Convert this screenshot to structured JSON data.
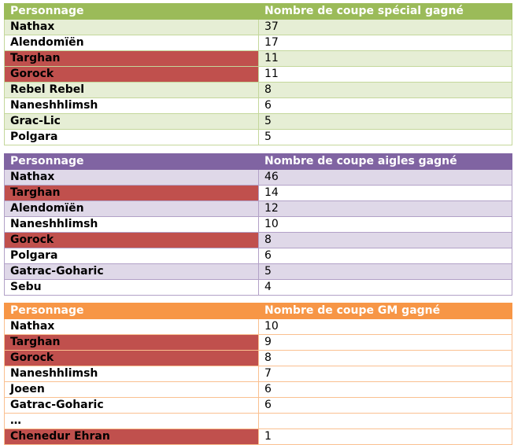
{
  "tables": [
    {
      "header": [
        "Personnage",
        "Nombre de coupe spécial gagné"
      ],
      "rows": [
        {
          "name": "Nathax",
          "value": "37"
        },
        {
          "name": "Alendomïën",
          "value": "17"
        },
        {
          "name": "Targhan",
          "value": "11"
        },
        {
          "name": "Gorock",
          "value": "11"
        },
        {
          "name": "Rebel Rebel",
          "value": "8"
        },
        {
          "name": "Naneshhlimsh",
          "value": "6"
        },
        {
          "name": "Grac-Lic",
          "value": "5"
        },
        {
          "name": "Polgara",
          "value": "5"
        }
      ]
    },
    {
      "header": [
        "Personnage",
        "Nombre de coupe aigles gagné"
      ],
      "rows": [
        {
          "name": "Nathax",
          "value": "46"
        },
        {
          "name": "Targhan",
          "value": "14"
        },
        {
          "name": "Alendomïën",
          "value": "12"
        },
        {
          "name": "Naneshhlimsh",
          "value": "10"
        },
        {
          "name": "Gorock",
          "value": "8"
        },
        {
          "name": "Polgara",
          "value": "6"
        },
        {
          "name": "Gatrac-Goharic",
          "value": "5"
        },
        {
          "name": "Sebu",
          "value": "4"
        }
      ]
    },
    {
      "header": [
        "Personnage",
        "Nombre de coupe GM gagné"
      ],
      "rows": [
        {
          "name": "Nathax",
          "value": "10"
        },
        {
          "name": "Targhan",
          "value": "9"
        },
        {
          "name": "Gorock",
          "value": "8"
        },
        {
          "name": "Naneshhlimsh",
          "value": "7"
        },
        {
          "name": "Joeen",
          "value": "6"
        },
        {
          "name": "Gatrac-Goharic",
          "value": "6"
        },
        {
          "name": "…",
          "value": ""
        },
        {
          "name": "Chenedur Ehran",
          "value": "1"
        }
      ]
    }
  ],
  "colors": {
    "table1_header": "#9bbb59",
    "table1_band": "#e6eed5",
    "table2_header": "#8064a2",
    "table2_band": "#dfd8e8",
    "table3_header": "#f79646",
    "highlight": "#c0504d"
  }
}
